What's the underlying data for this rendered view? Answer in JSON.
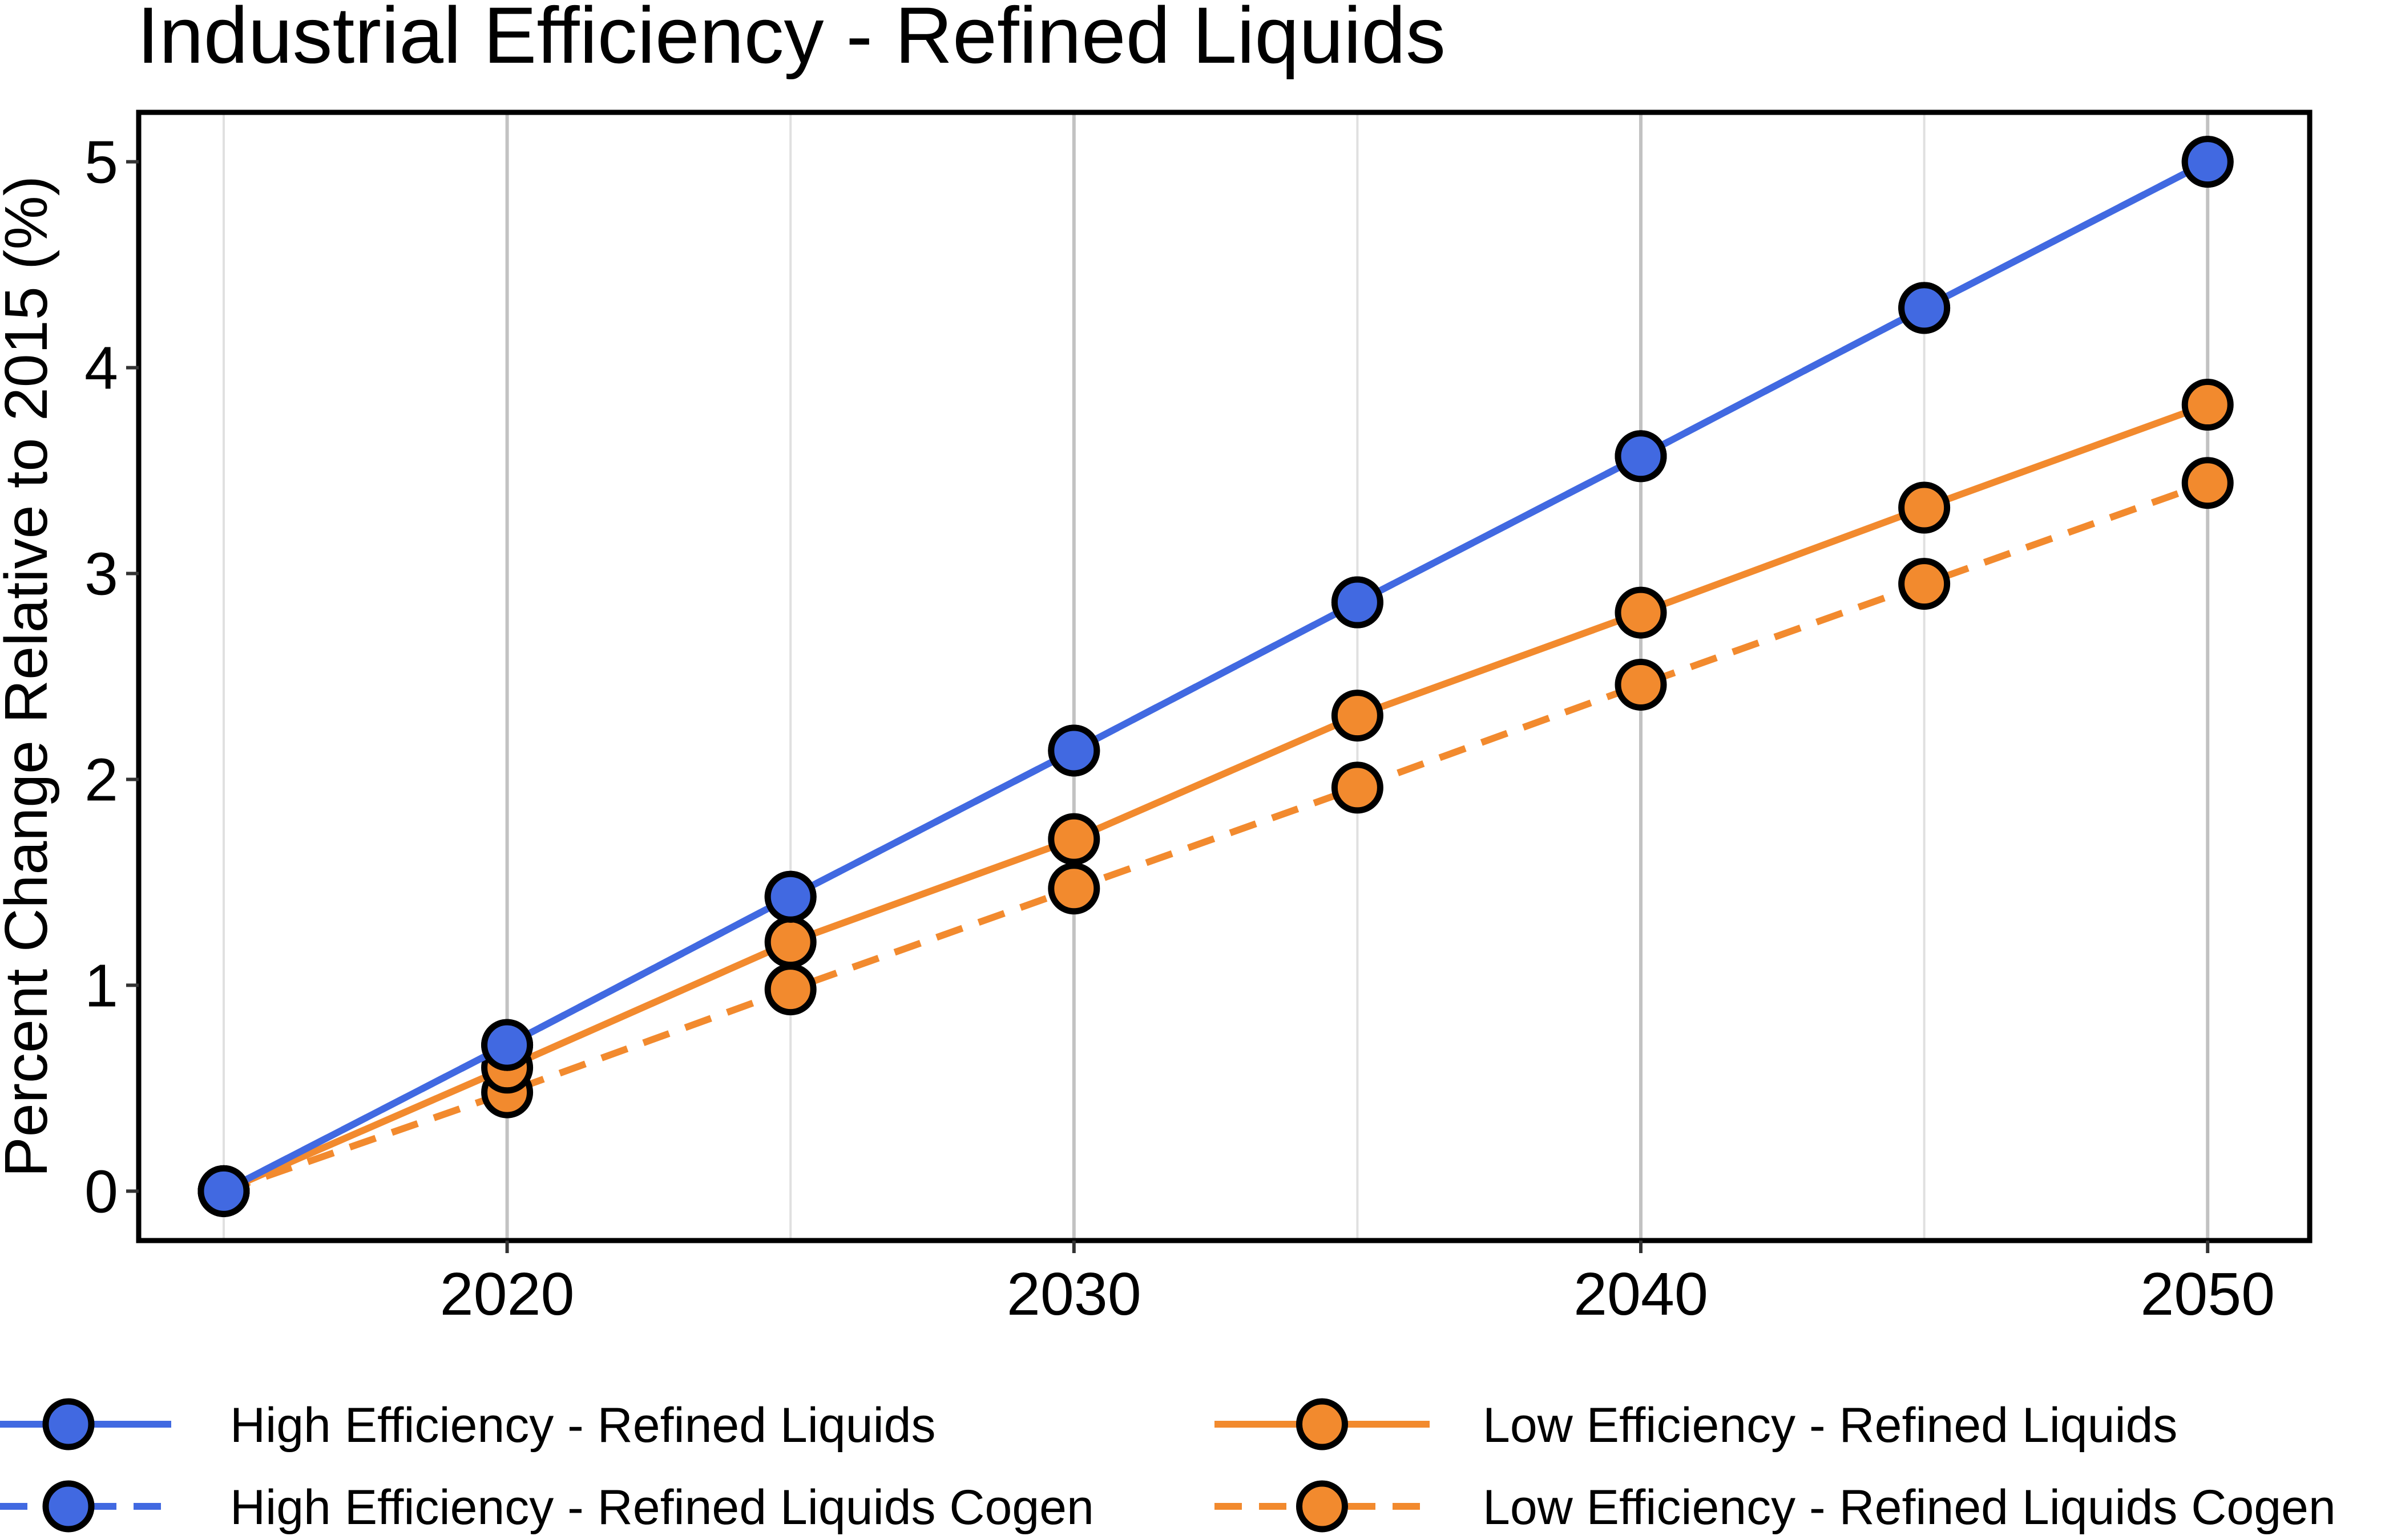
{
  "chart_data": {
    "type": "line",
    "title": "Industrial Efficiency - Refined Liquids",
    "xlabel": "",
    "ylabel": "Percent Change Relative to 2015 (%)",
    "x": [
      2015,
      2020,
      2025,
      2030,
      2035,
      2040,
      2045,
      2050
    ],
    "xlim": [
      2013.5,
      2051.8
    ],
    "ylim": [
      -0.24,
      5.24
    ],
    "xticks": [
      2020,
      2030,
      2040,
      2050
    ],
    "yticks": [
      0,
      1,
      2,
      3,
      4,
      5
    ],
    "grid": "vertical",
    "legend_position": "bottom",
    "series": [
      {
        "name": "High Efficiency - Refined Liquids",
        "color": "#4169E1",
        "dash": "solid",
        "values": [
          0,
          0.71,
          1.43,
          2.14,
          2.86,
          3.57,
          4.29,
          5.0
        ]
      },
      {
        "name": "High Efficiency - Refined Liquids Cogen",
        "color": "#4169E1",
        "dash": "dashed",
        "values": [
          0,
          0.71,
          1.43,
          2.14,
          2.86,
          3.57,
          4.29,
          5.0
        ]
      },
      {
        "name": "Low Efficiency - Refined Liquids",
        "color": "#F28A2E",
        "dash": "solid",
        "values": [
          0,
          0.6,
          1.21,
          1.71,
          2.31,
          2.81,
          3.32,
          3.82
        ]
      },
      {
        "name": "Low Efficiency - Refined Liquids Cogen",
        "color": "#F28A2E",
        "dash": "dashed",
        "values": [
          0,
          0.48,
          0.98,
          1.47,
          1.96,
          2.46,
          2.95,
          3.44
        ]
      }
    ]
  }
}
